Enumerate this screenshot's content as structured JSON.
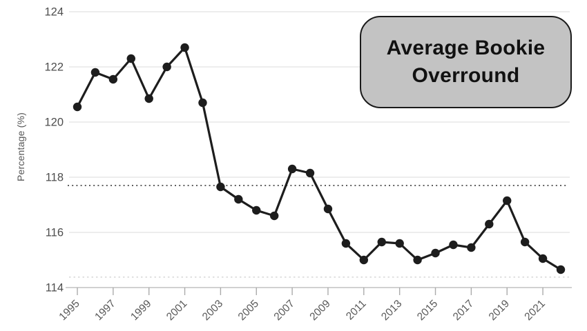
{
  "title_box": {
    "line1": "Average Bookie",
    "line2": "Overround",
    "bg_color": "#c3c3c3",
    "border_color": "#1a1a1a",
    "text_color": "#111111"
  },
  "chart_data": {
    "type": "line",
    "title": "Average Bookie Overround",
    "xlabel": "",
    "ylabel": "Percentage (%)",
    "x": [
      1995,
      1996,
      1997,
      1998,
      1999,
      2000,
      2001,
      2002,
      2003,
      2004,
      2005,
      2006,
      2007,
      2008,
      2009,
      2010,
      2011,
      2012,
      2013,
      2014,
      2015,
      2016,
      2017,
      2018,
      2019,
      2020,
      2021,
      2022
    ],
    "values": [
      120.55,
      121.8,
      121.55,
      122.3,
      120.85,
      122.0,
      122.7,
      120.7,
      117.65,
      117.2,
      116.8,
      116.6,
      118.3,
      118.15,
      116.85,
      115.6,
      115.0,
      115.65,
      115.6,
      115.0,
      115.25,
      115.55,
      115.45,
      116.3,
      117.15,
      115.65,
      115.05,
      114.65
    ],
    "ylim": [
      114,
      124
    ],
    "yticks": [
      114,
      116,
      118,
      120,
      122,
      124
    ],
    "xtick_labels": [
      "1995",
      "1997",
      "1999",
      "2001",
      "2003",
      "2005",
      "2007",
      "2009",
      "2011",
      "2013",
      "2015",
      "2017",
      "2019",
      "2021"
    ],
    "xtick_label_step": 2,
    "reference_line": {
      "value": 117.7,
      "style": "dotted",
      "color": "#5f5f5f"
    },
    "minor_dotted_line": {
      "value": 114.38,
      "style": "dotted",
      "color": "#d9d9d9"
    },
    "grid": "horizontal",
    "legend_position": "none",
    "series_color": "#1d1d1d",
    "marker": "circle",
    "gridline_color": "#e2e2e2",
    "axis_line_color": "#c2c2c2",
    "tick_color": "#ababab",
    "tick_label_color": "#4d4d4d",
    "x_label_color": "#585858"
  }
}
